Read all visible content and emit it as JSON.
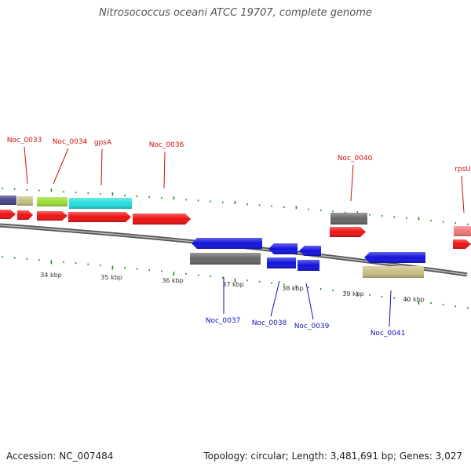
{
  "map": {
    "title": "Nitrosococcus oceani ATCC 19707, complete genome",
    "accession_text": "Accession: NC_007484",
    "topology_text": "Topology: circular; Length: 3,481,691 bp; Genes: 3,027"
  },
  "colors": {
    "forward_label": "#cc1111",
    "reverse_label": "#1111bb",
    "tick": "#228822",
    "backbone": "#888888",
    "cds_red": "#ee1111",
    "cds_blue": "#1111dd",
    "gray": "#666666",
    "khaki": "#c8be80",
    "lime": "#99dd33",
    "cyan": "#22dddd",
    "navy": "#444488",
    "pink": "#ee7777"
  },
  "kbp_ticks": [
    {
      "label": "34 kbp"
    },
    {
      "label": "35 kbp"
    },
    {
      "label": "36 kbp"
    },
    {
      "label": "37 kbp"
    },
    {
      "label": "38 kbp"
    },
    {
      "label": "39 kbp"
    },
    {
      "label": "40 kbp"
    }
  ],
  "gene_labels": [
    {
      "label": "Noc_0033",
      "strand": "forward"
    },
    {
      "label": "Noc_0034",
      "strand": "forward"
    },
    {
      "label": "gpsA",
      "strand": "forward"
    },
    {
      "label": "Noc_0036",
      "strand": "forward"
    },
    {
      "label": "Noc_0040",
      "strand": "forward"
    },
    {
      "label": "rpsU",
      "strand": "forward"
    },
    {
      "label": "Noc_0037",
      "strand": "reverse"
    },
    {
      "label": "Noc_0038",
      "strand": "reverse"
    },
    {
      "label": "Noc_0039",
      "strand": "reverse"
    },
    {
      "label": "Noc_0041",
      "strand": "reverse"
    }
  ],
  "features": [
    {
      "id": "f-navy-a",
      "strand": "forward",
      "type": "gene-outer",
      "color": "navy"
    },
    {
      "id": "f-khaki-a",
      "strand": "forward",
      "type": "gene-outer",
      "color": "khaki"
    },
    {
      "id": "f-lime",
      "strand": "forward",
      "type": "gene-outer",
      "color": "lime"
    },
    {
      "id": "f-cyan",
      "strand": "forward",
      "type": "gene-outer",
      "color": "cyan"
    },
    {
      "id": "f-gray-40",
      "strand": "forward",
      "type": "gene-outer",
      "color": "gray"
    },
    {
      "id": "f-pink",
      "strand": "forward",
      "type": "gene-outer",
      "color": "pink"
    },
    {
      "id": "f-red-a",
      "strand": "forward",
      "type": "cds",
      "color": "cds_red"
    },
    {
      "id": "f-red-b",
      "strand": "forward",
      "type": "cds",
      "color": "cds_red"
    },
    {
      "id": "f-red-34",
      "strand": "forward",
      "type": "cds",
      "color": "cds_red"
    },
    {
      "id": "f-red-35",
      "strand": "forward",
      "type": "cds",
      "color": "cds_red"
    },
    {
      "id": "f-red-36",
      "strand": "forward",
      "type": "cds",
      "color": "cds_red"
    },
    {
      "id": "f-red-40",
      "strand": "forward",
      "type": "cds",
      "color": "cds_red"
    },
    {
      "id": "f-red-rpsu",
      "strand": "forward",
      "type": "cds",
      "color": "cds_red"
    },
    {
      "id": "r-blue-37",
      "strand": "reverse",
      "type": "cds",
      "color": "cds_blue"
    },
    {
      "id": "r-blue-38",
      "strand": "reverse",
      "type": "cds",
      "color": "cds_blue"
    },
    {
      "id": "r-blue-39",
      "strand": "reverse",
      "type": "cds",
      "color": "cds_blue"
    },
    {
      "id": "r-blue-41",
      "strand": "reverse",
      "type": "cds",
      "color": "cds_blue"
    },
    {
      "id": "r-gray-37",
      "strand": "reverse",
      "type": "gene-outer",
      "color": "gray"
    },
    {
      "id": "r-blue-38b",
      "strand": "reverse",
      "type": "gene-outer",
      "color": "cds_blue"
    },
    {
      "id": "r-blue-39b",
      "strand": "reverse",
      "type": "gene-outer",
      "color": "cds_blue"
    },
    {
      "id": "r-khaki-41",
      "strand": "reverse",
      "type": "gene-outer",
      "color": "khaki"
    }
  ]
}
